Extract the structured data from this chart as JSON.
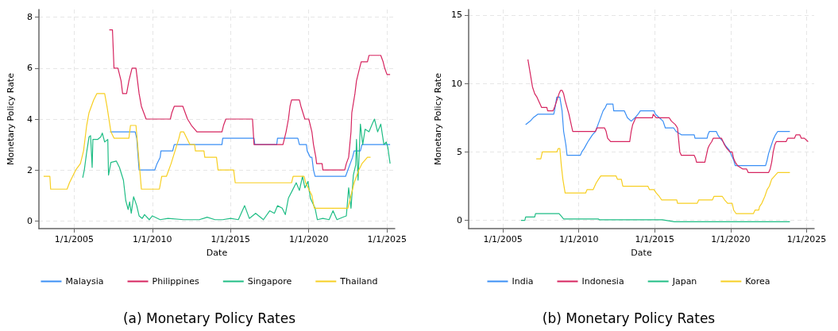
{
  "chart_data": [
    {
      "type": "line",
      "xlabel": "Date",
      "ylabel": "Monetary Policy Rate",
      "annotations": [
        "(a) Monetary Policy Rates"
      ],
      "xlim": [
        "2002-10-01",
        "2025-07-01"
      ],
      "xticks": [
        {
          "value": "2005-01-01",
          "label": "1/1/2005"
        },
        {
          "value": "2010-01-01",
          "label": "1/1/2010"
        },
        {
          "value": "2015-01-01",
          "label": "1/1/2015"
        },
        {
          "value": "2020-01-01",
          "label": "1/1/2020"
        },
        {
          "value": "2025-01-01",
          "label": "1/1/2025"
        }
      ],
      "ylim": [
        -0.3,
        8.3
      ],
      "yticks": [
        0,
        2,
        4,
        6,
        8
      ],
      "grid": true,
      "legend": "bottom",
      "series": [
        {
          "name": "Malaysia",
          "color": "#3a8ff5",
          "x": [
            "2007-04-20",
            "2008-11-25",
            "2009-01-01",
            "2009-02-25",
            "2010-02-25",
            "2010-04-20",
            "2010-07-02",
            "2010-07-20",
            "2011-04-20",
            "2011-05-27",
            "2014-06-14",
            "2014-07-02",
            "2016-07-02",
            "2016-07-20",
            "2017-12-14",
            "2018-01-01",
            "2019-04-20",
            "2019-05-27",
            "2019-11-07",
            "2019-11-25",
            "2020-02-06",
            "2020-03-14",
            "2020-04-20",
            "2020-05-27",
            "2022-05-09",
            "2022-07-02",
            "2022-08-26",
            "2022-10-20",
            "2022-11-25",
            "2023-04-20",
            "2023-05-27",
            "2025-03-14"
          ],
          "values": [
            3.5,
            3.5,
            3.25,
            2.0,
            2.0,
            2.25,
            2.5,
            2.75,
            2.75,
            3.0,
            3.0,
            3.25,
            3.25,
            3.0,
            3.0,
            3.25,
            3.25,
            3.0,
            3.0,
            2.75,
            2.5,
            2.5,
            2.0,
            1.75,
            1.75,
            2.0,
            2.25,
            2.5,
            2.75,
            2.75,
            3.0,
            3.0
          ]
        },
        {
          "name": "Philippines",
          "color": "#d6245f",
          "x": [
            "2007-04-01",
            "2007-06-14",
            "2007-07-20",
            "2007-10-20",
            "2008-01-01",
            "2008-02-06",
            "2008-05-09",
            "2008-07-02",
            "2008-09-13",
            "2008-12-14",
            "2009-02-25",
            "2009-04-20",
            "2009-06-14",
            "2009-08-08",
            "2011-02-25",
            "2011-04-01",
            "2011-05-27",
            "2011-12-14",
            "2012-02-06",
            "2012-04-01",
            "2012-07-02",
            "2012-11-07",
            "2014-06-14",
            "2014-07-20",
            "2014-09-13",
            "2016-05-27",
            "2016-07-02",
            "2018-05-09",
            "2018-06-14",
            "2018-07-20",
            "2018-09-13",
            "2018-10-20",
            "2018-11-25",
            "2019-05-27",
            "2019-07-02",
            "2019-10-02",
            "2020-01-01",
            "2020-03-14",
            "2020-04-20",
            "2020-06-14",
            "2020-07-02",
            "2020-11-07",
            "2020-11-25",
            "2022-04-20",
            "2022-05-27",
            "2022-07-20",
            "2022-09-13",
            "2022-10-02",
            "2022-12-14",
            "2023-01-19",
            "2023-04-01",
            "2023-05-09",
            "2023-10-02",
            "2023-11-07",
            "2024-08-08",
            "2024-10-02",
            "2024-11-07",
            "2025-01-01",
            "2025-03-14"
          ],
          "values": [
            7.5,
            7.5,
            6.0,
            6.0,
            5.5,
            5.0,
            5.0,
            5.5,
            6.0,
            6.0,
            5.0,
            4.5,
            4.25,
            4.0,
            4.0,
            4.25,
            4.5,
            4.5,
            4.25,
            4.0,
            3.75,
            3.5,
            3.5,
            3.75,
            4.0,
            4.0,
            3.0,
            3.0,
            3.25,
            3.5,
            4.0,
            4.5,
            4.75,
            4.75,
            4.5,
            4.0,
            4.0,
            3.5,
            3.0,
            2.5,
            2.25,
            2.25,
            2.0,
            2.0,
            2.25,
            2.5,
            3.5,
            4.25,
            5.0,
            5.5,
            6.0,
            6.25,
            6.25,
            6.5,
            6.5,
            6.25,
            6.0,
            5.75,
            5.75
          ]
        },
        {
          "name": "Singapore",
          "color": "#1fbd85",
          "x": [
            "2005-07-20",
            "2005-08-26",
            "2005-10-20",
            "2005-12-14",
            "2006-01-19",
            "2006-02-25",
            "2006-03-14",
            "2006-07-02",
            "2006-09-13",
            "2006-10-20",
            "2006-12-14",
            "2007-02-25",
            "2007-03-14",
            "2007-05-09",
            "2007-09-13",
            "2007-11-25",
            "2008-02-25",
            "2008-04-20",
            "2008-06-14",
            "2008-07-20",
            "2008-08-26",
            "2008-10-20",
            "2009-01-01",
            "2009-02-25",
            "2009-05-09",
            "2009-07-02",
            "2009-10-20",
            "2010-01-01",
            "2010-07-02",
            "2011-01-01",
            "2012-01-01",
            "2013-01-01",
            "2013-07-02",
            "2014-01-01",
            "2014-07-02",
            "2015-01-01",
            "2015-07-02",
            "2015-11-25",
            "2016-03-14",
            "2016-08-08",
            "2017-02-06",
            "2017-07-02",
            "2017-10-20",
            "2018-01-01",
            "2018-04-20",
            "2018-07-02",
            "2018-09-13",
            "2018-12-14",
            "2019-03-14",
            "2019-05-27",
            "2019-08-08",
            "2019-10-02",
            "2019-12-14",
            "2020-02-06",
            "2020-05-27",
            "2020-07-20",
            "2020-11-25",
            "2021-04-20",
            "2021-07-20",
            "2021-10-20",
            "2022-03-14",
            "2022-05-27",
            "2022-07-20",
            "2022-09-13",
            "2022-11-07",
            "2023-01-01",
            "2023-01-19",
            "2023-02-25",
            "2023-04-20",
            "2023-06-14",
            "2023-08-08",
            "2023-11-07",
            "2024-01-19",
            "2024-03-14",
            "2024-05-27",
            "2024-08-08",
            "2024-10-20",
            "2024-12-14",
            "2025-01-19",
            "2025-03-14"
          ],
          "values": [
            1.7,
            2.0,
            2.7,
            3.3,
            3.35,
            2.1,
            3.2,
            3.2,
            3.3,
            3.45,
            3.1,
            3.2,
            1.8,
            2.3,
            2.35,
            2.1,
            1.6,
            0.8,
            0.45,
            0.75,
            0.3,
            0.95,
            0.6,
            0.2,
            0.1,
            0.25,
            0.05,
            0.2,
            0.05,
            0.1,
            0.05,
            0.05,
            0.15,
            0.05,
            0.05,
            0.1,
            0.05,
            0.6,
            0.1,
            0.3,
            0.05,
            0.4,
            0.3,
            0.6,
            0.5,
            0.25,
            0.9,
            1.2,
            1.5,
            1.2,
            1.75,
            1.3,
            1.55,
            0.9,
            0.5,
            0.05,
            0.1,
            0.05,
            0.4,
            0.05,
            0.15,
            0.2,
            1.3,
            0.5,
            1.8,
            2.2,
            3.2,
            1.6,
            3.8,
            3.0,
            3.6,
            3.5,
            3.8,
            4.0,
            3.5,
            3.8,
            3.0,
            3.1,
            2.9,
            2.25
          ]
        },
        {
          "name": "Thailand",
          "color": "#f7cf22",
          "x": [
            "2003-01-19",
            "2003-06-14",
            "2003-07-02",
            "2004-07-20",
            "2004-09-13",
            "2004-11-25",
            "2005-02-06",
            "2005-05-27",
            "2005-08-08",
            "2005-10-20",
            "2005-12-14",
            "2006-04-01",
            "2006-06-14",
            "2006-12-14",
            "2007-02-06",
            "2007-05-09",
            "2007-07-20",
            "2008-07-02",
            "2008-08-08",
            "2008-12-14",
            "2009-04-20",
            "2010-06-14",
            "2010-08-08",
            "2010-11-25",
            "2011-03-14",
            "2011-06-14",
            "2011-09-13",
            "2011-10-20",
            "2012-01-01",
            "2012-03-14",
            "2012-05-27",
            "2012-09-13",
            "2012-10-02",
            "2013-04-20",
            "2013-05-09",
            "2014-02-06",
            "2014-03-14",
            "2015-03-14",
            "2015-04-20",
            "2018-11-25",
            "2019-01-01",
            "2019-09-13",
            "2019-10-20",
            "2020-01-01",
            "2020-03-14",
            "2020-05-09",
            "2022-07-02",
            "2022-09-13",
            "2022-11-25",
            "2023-03-14",
            "2023-05-27",
            "2023-10-02",
            "2023-12-14"
          ],
          "values": [
            1.75,
            1.75,
            1.25,
            1.25,
            1.5,
            1.75,
            2.0,
            2.25,
            2.75,
            3.75,
            4.25,
            4.75,
            5.0,
            5.0,
            4.5,
            3.5,
            3.25,
            3.25,
            3.75,
            3.75,
            1.25,
            1.25,
            1.75,
            1.75,
            2.25,
            2.75,
            3.25,
            3.5,
            3.5,
            3.25,
            3.0,
            3.0,
            2.75,
            2.75,
            2.5,
            2.5,
            2.0,
            2.0,
            1.5,
            1.5,
            1.75,
            1.75,
            1.5,
            1.25,
            1.0,
            0.5,
            0.5,
            1.0,
            1.5,
            2.0,
            2.25,
            2.5,
            2.5
          ]
        }
      ]
    },
    {
      "type": "line",
      "xlabel": "Date",
      "ylabel": "Monetary Policy Rate",
      "annotations": [
        "(b) Monetary Policy Rates"
      ],
      "xlim": [
        "2002-10-01",
        "2025-07-01"
      ],
      "xticks": [
        {
          "value": "2005-01-01",
          "label": "1/1/2005"
        },
        {
          "value": "2010-01-01",
          "label": "1/1/2010"
        },
        {
          "value": "2015-01-01",
          "label": "1/1/2015"
        },
        {
          "value": "2020-01-01",
          "label": "1/1/2020"
        },
        {
          "value": "2025-01-01",
          "label": "1/1/2025"
        }
      ],
      "ylim": [
        -0.6,
        15.4
      ],
      "yticks": [
        0,
        5,
        10,
        15
      ],
      "grid": true,
      "legend": "bottom",
      "series": [
        {
          "name": "India",
          "color": "#3a8ff5",
          "x": [
            "2006-07-02",
            "2006-10-20",
            "2007-01-01",
            "2007-04-20",
            "2008-05-09",
            "2008-05-27",
            "2008-07-20",
            "2008-10-02",
            "2008-11-25",
            "2009-01-01",
            "2009-02-25",
            "2009-03-25",
            "2010-02-06",
            "2010-03-14",
            "2010-05-09",
            "2010-08-08",
            "2010-10-02",
            "2010-11-25",
            "2011-02-06",
            "2011-05-09",
            "2011-08-08",
            "2011-10-02",
            "2011-11-07",
            "2012-04-01",
            "2012-04-20",
            "2013-01-01",
            "2013-02-06",
            "2013-03-14",
            "2013-06-14",
            "2013-09-13",
            "2013-11-25",
            "2014-01-19",
            "2014-12-14",
            "2015-01-19",
            "2015-04-20",
            "2015-07-20",
            "2015-09-13",
            "2016-04-01",
            "2016-05-27",
            "2016-10-02",
            "2017-08-08",
            "2017-08-26",
            "2018-06-14",
            "2018-07-02",
            "2018-08-08",
            "2019-01-19",
            "2019-02-25",
            "2019-04-20",
            "2019-07-02",
            "2019-09-13",
            "2019-11-25",
            "2020-03-14",
            "2020-04-20",
            "2022-04-20",
            "2022-05-27",
            "2022-07-02",
            "2022-08-26",
            "2022-10-20",
            "2022-12-14",
            "2023-02-06",
            "2023-11-25"
          ],
          "values": [
            7.0,
            7.25,
            7.5,
            7.75,
            7.75,
            8.0,
            9.0,
            9.0,
            8.0,
            6.5,
            5.5,
            4.75,
            4.75,
            5.0,
            5.25,
            5.75,
            6.0,
            6.25,
            6.5,
            7.25,
            8.0,
            8.25,
            8.5,
            8.5,
            8.0,
            8.0,
            7.75,
            7.5,
            7.25,
            7.5,
            7.75,
            8.0,
            8.0,
            7.75,
            7.5,
            7.25,
            6.75,
            6.75,
            6.5,
            6.25,
            6.25,
            6.0,
            6.0,
            6.25,
            6.5,
            6.5,
            6.25,
            6.0,
            5.75,
            5.4,
            5.15,
            4.4,
            4.0,
            4.0,
            4.4,
            4.9,
            5.4,
            5.9,
            6.25,
            6.5,
            6.5
          ]
        },
        {
          "name": "Indonesia",
          "color": "#d6245f",
          "x": [
            "2006-08-26",
            "2006-10-20",
            "2006-12-14",
            "2007-02-06",
            "2007-04-01",
            "2007-06-14",
            "2007-07-20",
            "2007-11-25",
            "2007-12-14",
            "2008-04-20",
            "2008-05-27",
            "2008-07-20",
            "2008-09-13",
            "2008-10-20",
            "2008-11-25",
            "2009-01-01",
            "2009-02-06",
            "2009-05-09",
            "2009-07-02",
            "2009-08-08",
            "2011-02-06",
            "2011-03-14",
            "2011-09-13",
            "2011-10-20",
            "2011-11-25",
            "2012-02-06",
            "2013-05-09",
            "2013-06-14",
            "2013-07-20",
            "2013-10-02",
            "2014-11-07",
            "2014-11-25",
            "2015-02-06",
            "2015-12-14",
            "2016-02-06",
            "2016-05-09",
            "2016-07-02",
            "2016-08-26",
            "2016-10-02",
            "2017-08-08",
            "2017-09-13",
            "2017-10-02",
            "2018-04-20",
            "2018-05-27",
            "2018-07-02",
            "2018-08-08",
            "2018-10-02",
            "2018-11-07",
            "2019-05-27",
            "2019-07-02",
            "2019-08-08",
            "2019-10-02",
            "2019-12-14",
            "2020-02-06",
            "2020-03-14",
            "2020-04-20",
            "2020-06-14",
            "2020-10-20",
            "2021-01-19",
            "2021-02-25",
            "2022-07-02",
            "2022-08-08",
            "2022-09-13",
            "2022-10-20",
            "2022-11-25",
            "2023-01-01",
            "2023-08-26",
            "2023-10-02",
            "2024-03-14",
            "2024-04-20",
            "2024-07-20",
            "2024-08-26",
            "2024-11-07",
            "2025-02-06"
          ],
          "values": [
            11.75,
            10.75,
            9.75,
            9.25,
            9.0,
            8.5,
            8.25,
            8.25,
            8.0,
            8.0,
            8.25,
            8.75,
            9.25,
            9.5,
            9.5,
            9.25,
            8.75,
            7.75,
            7.0,
            6.5,
            6.5,
            6.75,
            6.75,
            6.5,
            6.0,
            5.75,
            5.75,
            6.5,
            7.0,
            7.5,
            7.5,
            7.75,
            7.5,
            7.5,
            7.25,
            7.0,
            6.75,
            5.0,
            4.75,
            4.75,
            4.5,
            4.25,
            4.25,
            4.75,
            5.25,
            5.5,
            5.75,
            6.0,
            6.0,
            5.75,
            5.5,
            5.25,
            5.0,
            5.0,
            4.5,
            4.25,
            4.0,
            3.75,
            3.75,
            3.5,
            3.5,
            3.75,
            4.25,
            5.0,
            5.5,
            5.75,
            5.75,
            6.0,
            6.0,
            6.25,
            6.25,
            6.0,
            6.0,
            5.75
          ]
        },
        {
          "name": "Japan",
          "color": "#1fbd85",
          "x": [
            "2006-03-14",
            "2006-06-14",
            "2006-07-02",
            "2007-02-06",
            "2007-02-25",
            "2008-09-13",
            "2008-11-07",
            "2009-01-01",
            "2011-04-20",
            "2011-05-09",
            "2015-07-02",
            "2016-04-20",
            "2023-11-25"
          ],
          "values": [
            0,
            0,
            0.25,
            0.25,
            0.5,
            0.5,
            0.3,
            0.1,
            0.1,
            0.05,
            0.05,
            -0.1,
            -0.1
          ]
        },
        {
          "name": "Korea",
          "color": "#f7cf22",
          "x": [
            "2007-03-14",
            "2007-07-02",
            "2007-08-08",
            "2008-07-20",
            "2008-08-26",
            "2008-10-02",
            "2008-11-07",
            "2008-12-14",
            "2009-02-06",
            "2010-06-14",
            "2010-07-20",
            "2010-12-14",
            "2011-01-19",
            "2011-02-25",
            "2011-04-20",
            "2011-06-14",
            "2012-06-14",
            "2012-07-20",
            "2012-10-20",
            "2012-11-07",
            "2012-11-25",
            "2014-07-20",
            "2014-08-26",
            "2014-12-14",
            "2015-02-06",
            "2015-04-20",
            "2015-06-14",
            "2016-06-14",
            "2016-07-02",
            "2017-10-20",
            "2017-11-25",
            "2018-10-20",
            "2018-11-25",
            "2019-06-14",
            "2019-08-08",
            "2019-10-20",
            "2020-02-06",
            "2020-03-14",
            "2020-05-09",
            "2021-07-02",
            "2021-08-08",
            "2021-11-07",
            "2021-11-25",
            "2022-01-19",
            "2022-04-01",
            "2022-05-27",
            "2022-07-20",
            "2022-09-13",
            "2022-11-25",
            "2023-02-06",
            "2023-11-25"
          ],
          "values": [
            4.5,
            4.5,
            5.0,
            5.0,
            5.25,
            5.25,
            4.0,
            3.0,
            2.0,
            2.0,
            2.25,
            2.25,
            2.5,
            2.75,
            3.0,
            3.25,
            3.25,
            3.0,
            3.0,
            2.75,
            2.5,
            2.5,
            2.25,
            2.25,
            2.0,
            1.75,
            1.5,
            1.5,
            1.25,
            1.25,
            1.5,
            1.5,
            1.75,
            1.75,
            1.5,
            1.25,
            1.25,
            0.75,
            0.5,
            0.5,
            0.75,
            0.75,
            1.0,
            1.25,
            1.75,
            2.25,
            2.5,
            3.0,
            3.25,
            3.5,
            3.5
          ]
        }
      ]
    }
  ]
}
